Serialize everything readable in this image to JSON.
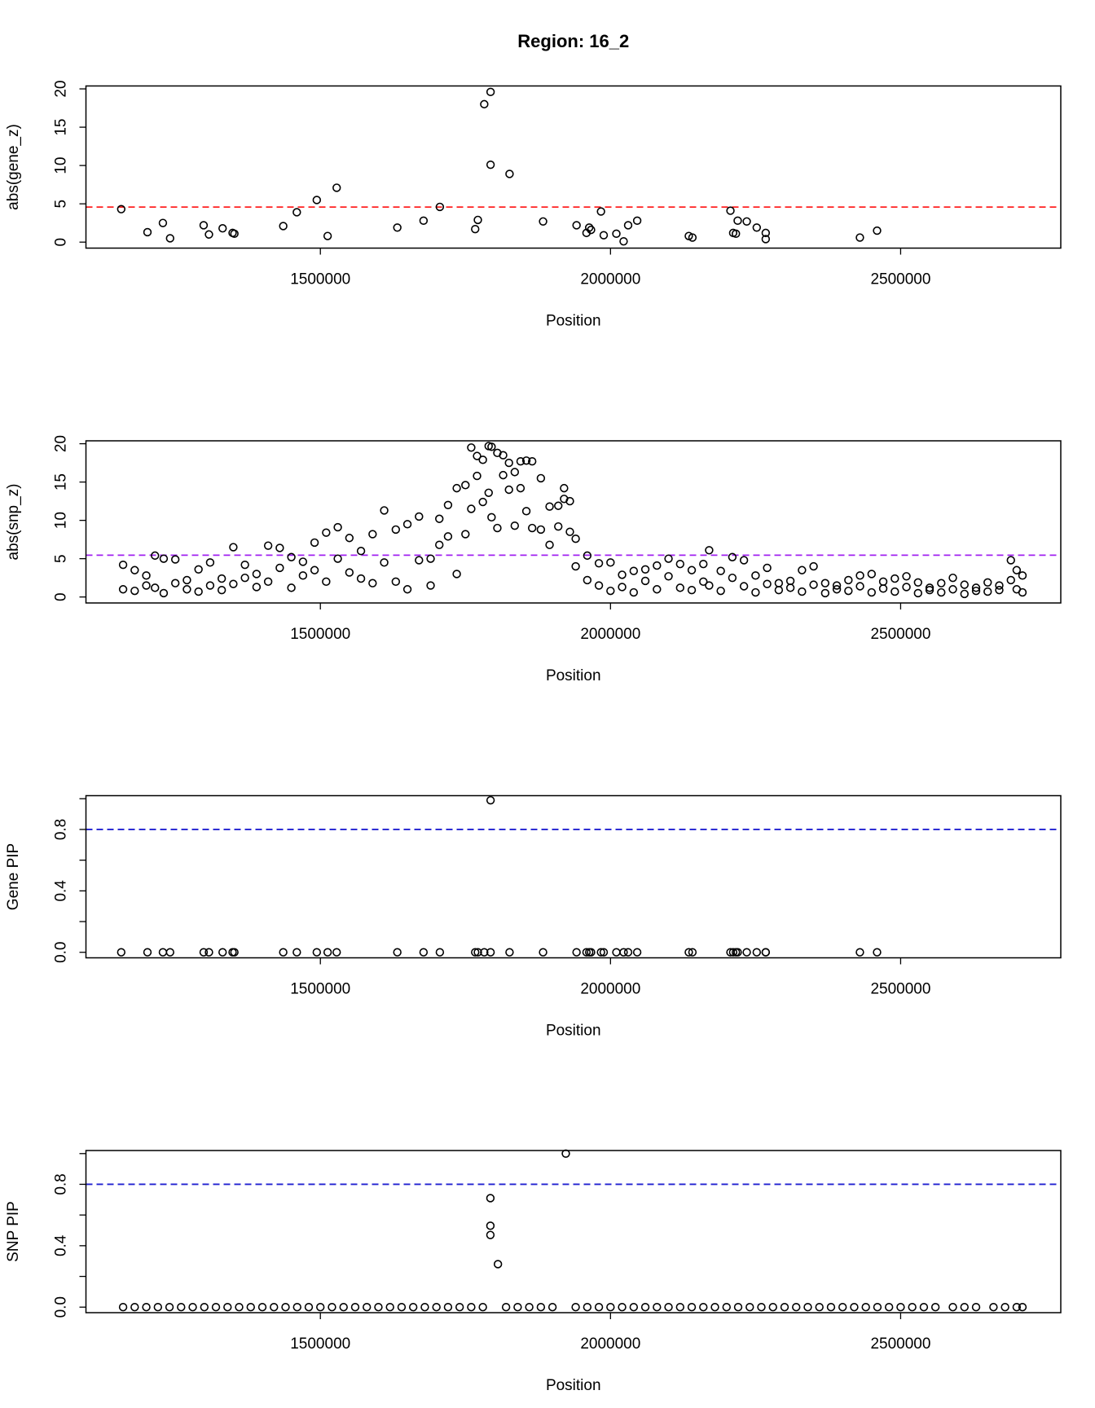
{
  "chart_data": [
    {
      "type": "scatter",
      "title": "Region: 16_2",
      "xlabel": "Position",
      "ylabel": "abs(gene_z)",
      "xlim": [
        1096000,
        2776000
      ],
      "ylim": [
        -0.78,
        20.38
      ],
      "xticks": [
        1500000,
        2000000,
        2500000
      ],
      "yticks": [
        0,
        5,
        10,
        15,
        20
      ],
      "hline": {
        "value": 4.58,
        "color": "#ff2020"
      },
      "color": "#000000",
      "x": [
        1156800,
        1202000,
        1228600,
        1241000,
        1298800,
        1308000,
        1331500,
        1348700,
        1351800,
        1436000,
        1459400,
        1493800,
        1512500,
        1528100,
        1632600,
        1677800,
        1705900,
        1766800,
        1771400,
        1782400,
        1793300,
        1793300,
        1826000,
        1883800,
        1941500,
        1958600,
        1963300,
        1966500,
        1983600,
        1988300,
        2010100,
        2022600,
        2030400,
        2046000,
        2134900,
        2141200,
        2206700,
        2211400,
        2216100,
        2219200,
        2234800,
        2252000,
        2267500,
        2267500,
        2429800,
        2459400
      ],
      "values": [
        4.3,
        1.3,
        2.5,
        0.5,
        2.2,
        1.0,
        1.8,
        1.2,
        1.1,
        2.1,
        3.9,
        5.5,
        0.8,
        7.1,
        1.9,
        2.8,
        4.6,
        1.7,
        2.9,
        18.0,
        19.6,
        10.1,
        8.9,
        2.7,
        2.2,
        1.2,
        1.9,
        1.6,
        4.0,
        0.9,
        1.1,
        0.1,
        2.2,
        2.8,
        0.8,
        0.6,
        4.1,
        1.2,
        1.1,
        2.8,
        2.7,
        1.9,
        1.2,
        0.4,
        0.6,
        1.5
      ]
    },
    {
      "type": "scatter",
      "xlabel": "Position",
      "ylabel": "abs(snp_z)",
      "xlim": [
        1096000,
        2776000
      ],
      "ylim": [
        -0.78,
        20.38
      ],
      "xticks": [
        1500000,
        2000000,
        2500000
      ],
      "yticks": [
        0,
        5,
        10,
        15,
        20
      ],
      "hline": {
        "value": 5.45,
        "color": "#a020f0"
      },
      "color": "#000000",
      "x": [
        1160000,
        1160000,
        1180000,
        1180000,
        1200000,
        1200000,
        1215000,
        1215000,
        1230000,
        1230000,
        1250000,
        1250000,
        1270000,
        1270000,
        1290000,
        1290000,
        1310000,
        1310000,
        1330000,
        1330000,
        1350000,
        1350000,
        1370000,
        1370000,
        1390000,
        1390000,
        1410000,
        1410000,
        1430000,
        1430000,
        1450000,
        1450000,
        1470000,
        1470000,
        1490000,
        1490000,
        1510000,
        1510000,
        1530000,
        1530000,
        1550000,
        1550000,
        1570000,
        1570000,
        1590000,
        1590000,
        1610000,
        1610000,
        1630000,
        1630000,
        1650000,
        1650000,
        1670000,
        1670000,
        1690000,
        1690000,
        1705000,
        1705000,
        1720000,
        1720000,
        1735000,
        1735000,
        1750000,
        1750000,
        1760000,
        1760000,
        1770000,
        1770000,
        1780000,
        1780000,
        1790000,
        1790000,
        1795000,
        1795000,
        1805000,
        1805000,
        1815000,
        1815000,
        1825000,
        1825000,
        1835000,
        1835000,
        1845000,
        1845000,
        1855000,
        1855000,
        1865000,
        1865000,
        1880000,
        1880000,
        1895000,
        1895000,
        1910000,
        1910000,
        1920000,
        1920000,
        1930000,
        1930000,
        1940000,
        1940000,
        1960000,
        1960000,
        1980000,
        1980000,
        2000000,
        2000000,
        2020000,
        2020000,
        2040000,
        2040000,
        2060000,
        2060000,
        2080000,
        2080000,
        2100000,
        2100000,
        2120000,
        2120000,
        2140000,
        2140000,
        2160000,
        2160000,
        2170000,
        2170000,
        2190000,
        2190000,
        2210000,
        2210000,
        2230000,
        2230000,
        2250000,
        2250000,
        2270000,
        2270000,
        2290000,
        2290000,
        2310000,
        2310000,
        2330000,
        2330000,
        2350000,
        2350000,
        2370000,
        2370000,
        2390000,
        2390000,
        2410000,
        2410000,
        2430000,
        2430000,
        2450000,
        2450000,
        2470000,
        2470000,
        2490000,
        2490000,
        2510000,
        2510000,
        2530000,
        2530000,
        2550000,
        2550000,
        2570000,
        2570000,
        2590000,
        2590000,
        2610000,
        2610000,
        2630000,
        2630000,
        2650000,
        2650000,
        2670000,
        2670000,
        2690000,
        2690000,
        2700000,
        2700000,
        2710000,
        2710000
      ],
      "values": [
        4.2,
        1.0,
        3.5,
        0.8,
        2.8,
        1.5,
        5.4,
        1.2,
        5.0,
        0.5,
        4.9,
        1.8,
        1.0,
        2.2,
        3.6,
        0.7,
        4.5,
        1.5,
        2.4,
        0.9,
        6.5,
        1.7,
        4.2,
        2.5,
        1.3,
        3.0,
        6.7,
        2.0,
        6.4,
        3.8,
        5.2,
        1.2,
        4.6,
        2.8,
        7.1,
        3.5,
        8.4,
        2.0,
        9.1,
        5.0,
        7.7,
        3.2,
        6.0,
        2.4,
        8.2,
        1.8,
        11.3,
        4.5,
        8.8,
        2.0,
        9.5,
        1.0,
        10.5,
        4.8,
        5.0,
        1.5,
        10.2,
        6.8,
        12.0,
        7.9,
        14.2,
        3.0,
        14.6,
        8.2,
        19.5,
        11.5,
        18.4,
        15.8,
        17.9,
        12.4,
        19.7,
        13.6,
        19.6,
        10.4,
        18.8,
        9.0,
        18.5,
        15.9,
        17.5,
        14.0,
        16.3,
        9.3,
        17.7,
        14.2,
        17.8,
        11.2,
        17.7,
        9.0,
        15.5,
        8.8,
        11.8,
        6.8,
        11.9,
        9.2,
        14.2,
        12.8,
        12.5,
        8.5,
        7.6,
        4.0,
        5.4,
        2.2,
        4.4,
        1.5,
        4.5,
        0.8,
        2.9,
        1.3,
        3.4,
        0.6,
        3.6,
        2.1,
        4.1,
        1.0,
        5.0,
        2.7,
        4.3,
        1.2,
        3.5,
        0.9,
        4.3,
        2.0,
        6.1,
        1.5,
        3.4,
        0.8,
        5.2,
        2.5,
        4.8,
        1.4,
        2.8,
        0.6,
        3.8,
        1.7,
        1.8,
        0.9,
        2.1,
        1.2,
        3.5,
        0.7,
        4.0,
        1.6,
        1.8,
        0.5,
        1.5,
        1.0,
        2.2,
        0.8,
        2.8,
        1.4,
        3.0,
        0.6,
        2.0,
        1.1,
        2.4,
        0.7,
        2.7,
        1.3,
        1.9,
        0.5,
        1.2,
        0.9,
        1.8,
        0.6,
        2.5,
        1.0,
        1.6,
        0.4,
        0.8,
        1.2,
        1.9,
        0.7,
        1.5,
        0.9,
        4.8,
        2.2,
        3.5,
        1.0,
        2.8,
        0.6
      ]
    },
    {
      "type": "scatter",
      "xlabel": "Position",
      "ylabel": "Gene PIP",
      "xlim": [
        1096000,
        2776000
      ],
      "ylim": [
        -0.036,
        1.02
      ],
      "xticks": [
        1500000,
        2000000,
        2500000
      ],
      "yticks": [
        {
          "value": 0,
          "label": "0.0"
        },
        {
          "value": 0.4,
          "label": "0.4"
        },
        {
          "value": 0.8,
          "label": "0.8"
        }
      ],
      "yminor": [
        0.2,
        0.6,
        1.0
      ],
      "hline": {
        "value": 0.8,
        "color": "#2020d0"
      },
      "color": "#000000",
      "x": [
        1156800,
        1202000,
        1228600,
        1241000,
        1298800,
        1308000,
        1331500,
        1348700,
        1351800,
        1436000,
        1459400,
        1493800,
        1512500,
        1528100,
        1632600,
        1677800,
        1705900,
        1766800,
        1771400,
        1782400,
        1793300,
        1793300,
        1826000,
        1883800,
        1941500,
        1958600,
        1963300,
        1966500,
        1983600,
        1988300,
        2010100,
        2022600,
        2030400,
        2046000,
        2134900,
        2141200,
        2206700,
        2211400,
        2216100,
        2219200,
        2234800,
        2252000,
        2267500,
        2267500,
        2429800,
        2459400
      ],
      "values": [
        0,
        0,
        0,
        0,
        0,
        0,
        0,
        0,
        0,
        0,
        0,
        0,
        0,
        0,
        0,
        0,
        0,
        0,
        0,
        0,
        0.99,
        0,
        0,
        0,
        0,
        0,
        0,
        0,
        0,
        0,
        0,
        0,
        0,
        0,
        0,
        0,
        0,
        0,
        0,
        0,
        0,
        0,
        0,
        0,
        0,
        0
      ]
    },
    {
      "type": "scatter",
      "xlabel": "Position",
      "ylabel": "SNP PIP",
      "xlim": [
        1096000,
        2776000
      ],
      "ylim": [
        -0.036,
        1.02
      ],
      "xticks": [
        1500000,
        2000000,
        2500000
      ],
      "yticks": [
        {
          "value": 0,
          "label": "0.0"
        },
        {
          "value": 0.4,
          "label": "0.4"
        },
        {
          "value": 0.8,
          "label": "0.8"
        }
      ],
      "yminor": [
        0.2,
        0.6,
        1.0
      ],
      "hline": {
        "value": 0.8,
        "color": "#2020d0"
      },
      "color": "#000000",
      "x": [
        1160000,
        1180000,
        1200000,
        1220000,
        1240000,
        1260000,
        1280000,
        1300000,
        1320000,
        1340000,
        1360000,
        1380000,
        1400000,
        1420000,
        1440000,
        1460000,
        1480000,
        1500000,
        1520000,
        1540000,
        1560000,
        1580000,
        1600000,
        1620000,
        1640000,
        1660000,
        1680000,
        1700000,
        1720000,
        1740000,
        1760000,
        1780000,
        1793000,
        1793000,
        1793000,
        1806000,
        1820000,
        1840000,
        1860000,
        1880000,
        1900000,
        1923000,
        1940000,
        1960000,
        1980000,
        2000000,
        2020000,
        2040000,
        2060000,
        2080000,
        2100000,
        2120000,
        2140000,
        2160000,
        2180000,
        2200000,
        2220000,
        2240000,
        2260000,
        2280000,
        2300000,
        2320000,
        2340000,
        2360000,
        2380000,
        2400000,
        2420000,
        2440000,
        2460000,
        2480000,
        2500000,
        2520000,
        2540000,
        2560000,
        2590000,
        2610000,
        2630000,
        2660000,
        2680000,
        2700000,
        2710000
      ],
      "values": [
        0,
        0,
        0,
        0,
        0,
        0,
        0,
        0,
        0,
        0,
        0,
        0,
        0,
        0,
        0,
        0,
        0,
        0,
        0,
        0,
        0,
        0,
        0,
        0,
        0,
        0,
        0,
        0,
        0,
        0,
        0,
        0,
        0.71,
        0.53,
        0.47,
        0.28,
        0,
        0,
        0,
        0,
        0,
        1.0,
        0,
        0,
        0,
        0,
        0,
        0,
        0,
        0,
        0,
        0,
        0,
        0,
        0,
        0,
        0,
        0,
        0,
        0,
        0,
        0,
        0,
        0,
        0,
        0,
        0,
        0,
        0,
        0,
        0,
        0,
        0,
        0,
        0,
        0,
        0,
        0,
        0,
        0,
        0
      ]
    }
  ]
}
